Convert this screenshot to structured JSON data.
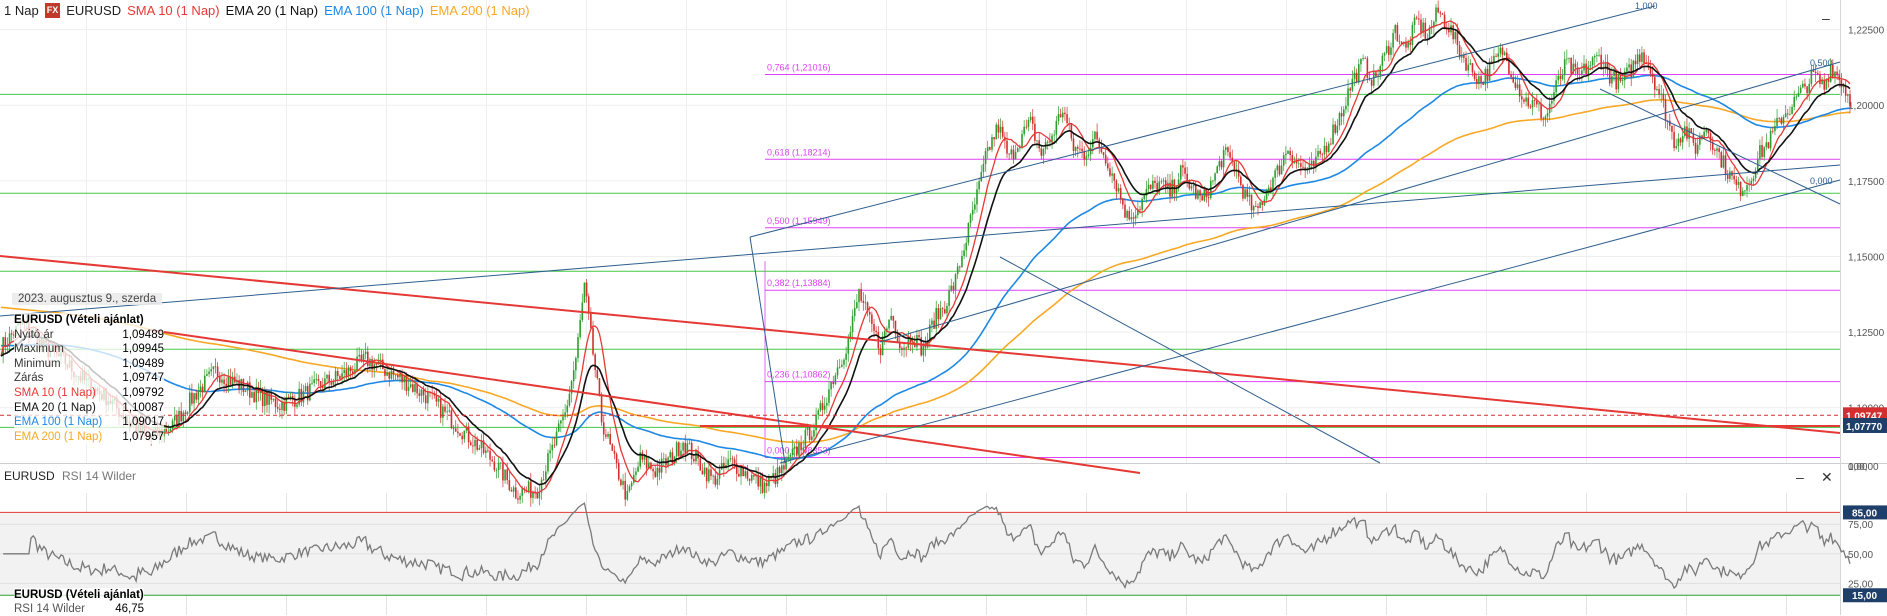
{
  "legend": {
    "timeframe": "1 Nap",
    "badge": "FX",
    "symbol": "EURUSD",
    "sma10": "SMA 10 (1 Nap)",
    "ema20": "EMA 20 (1 Nap)",
    "ema100": "EMA 100 (1 Nap)",
    "ema200": "EMA 200 (1 Nap)"
  },
  "colors": {
    "sma10": "#e53935",
    "ema20": "#111111",
    "ema100": "#1e88e5",
    "ema200": "#f9a825",
    "fib": "#e040fb",
    "hline": "#43c943",
    "trend_red": "#e53935",
    "trend_blue": "#2f5f8f",
    "candle_up": "#2e9d2e",
    "candle_down": "#d32f2f",
    "rsi": "#7a7a7a"
  },
  "info_panel": {
    "date": "2023. augusztus 9., szerda",
    "title": "EURUSD (Vételi ajánlat)",
    "rows": [
      {
        "label": "Nyitó ár",
        "value": "1,09489"
      },
      {
        "label": "Maximum",
        "value": "1,09945"
      },
      {
        "label": "Minimum",
        "value": "1,09489"
      },
      {
        "label": "Zárás",
        "value": "1,09747"
      },
      {
        "label": "SMA 10 (1 Nap)",
        "value": "1,09792"
      },
      {
        "label": "EMA 20 (1 Nap)",
        "value": "1,10087"
      },
      {
        "label": "EMA 100 (1 Nap)",
        "value": "1,09017"
      },
      {
        "label": "EMA 200 (1 Nap)",
        "value": "1,07957"
      }
    ]
  },
  "rsi_panel": {
    "symbol": "EURUSD",
    "indicator": "RSI 14 Wilder",
    "info_title": "EURUSD (Vételi ajánlat)",
    "info_label": "RSI 14 Wilder",
    "info_value": "46,75",
    "upper_level": "85,00",
    "lower_level": "15,00",
    "minimize": "–",
    "close": "✕"
  },
  "price_labels": {
    "current": "1,09747",
    "support": "1,07770"
  },
  "main_minimize": "–",
  "chart_data": {
    "type": "candlestick",
    "symbol": "EURUSD",
    "timeframe": "1 Nap",
    "y_ticks": [
      "1,22500",
      "1,20000",
      "1,17500",
      "1,15000",
      "1,12500",
      "1,10000"
    ],
    "ylim": [
      1.0817,
      1.2348
    ],
    "fibonacci": {
      "levels": [
        {
          "label": "0,000 (1,08353)",
          "value": 1.08353
        },
        {
          "label": "0,382 (1,13884)",
          "value": 1.13884
        },
        {
          "label": "0,500 (1,15949)",
          "value": 1.15949
        },
        {
          "label": "0,618 (1,18214)",
          "value": 1.18214
        },
        {
          "label": "0,764 (1,21016)",
          "value": 1.21016
        }
      ],
      "hidden_label": "0,236 (1,10862)",
      "hidden_value": 1.10862
    },
    "channel_labels": [
      "1,000",
      "0,500",
      "0,000"
    ],
    "horizontal_lines": [
      1.2036,
      1.1709,
      1.1451,
      1.1193,
      1.0935
    ],
    "close_keypoints": [
      [
        0,
        1.12
      ],
      [
        10,
        1.128
      ],
      [
        20,
        1.12
      ],
      [
        30,
        1.115
      ],
      [
        40,
        1.108
      ],
      [
        50,
        1.103
      ],
      [
        60,
        1.095
      ],
      [
        70,
        1.09
      ],
      [
        80,
        1.094
      ],
      [
        90,
        1.104
      ],
      [
        100,
        1.112
      ],
      [
        110,
        1.108
      ],
      [
        120,
        1.104
      ],
      [
        130,
        1.101
      ],
      [
        140,
        1.104
      ],
      [
        150,
        1.108
      ],
      [
        160,
        1.111
      ],
      [
        170,
        1.116
      ],
      [
        180,
        1.112
      ],
      [
        190,
        1.108
      ],
      [
        200,
        1.103
      ],
      [
        210,
        1.096
      ],
      [
        220,
        1.089
      ],
      [
        230,
        1.082
      ],
      [
        240,
        1.072
      ],
      [
        250,
        1.073
      ],
      [
        258,
        1.088
      ],
      [
        263,
        1.098
      ],
      [
        268,
        1.116
      ],
      [
        272,
        1.14
      ],
      [
        276,
        1.118
      ],
      [
        280,
        1.096
      ],
      [
        286,
        1.082
      ],
      [
        292,
        1.07
      ],
      [
        298,
        1.083
      ],
      [
        305,
        1.079
      ],
      [
        312,
        1.083
      ],
      [
        318,
        1.089
      ],
      [
        325,
        1.082
      ],
      [
        332,
        1.076
      ],
      [
        340,
        1.082
      ],
      [
        348,
        1.078
      ],
      [
        356,
        1.074
      ],
      [
        364,
        1.079
      ],
      [
        372,
        1.087
      ],
      [
        380,
        1.095
      ],
      [
        388,
        1.11
      ],
      [
        395,
        1.122
      ],
      [
        400,
        1.138
      ],
      [
        405,
        1.128
      ],
      [
        410,
        1.12
      ],
      [
        415,
        1.131
      ],
      [
        420,
        1.12
      ],
      [
        425,
        1.124
      ],
      [
        430,
        1.119
      ],
      [
        435,
        1.129
      ],
      [
        440,
        1.134
      ],
      [
        445,
        1.142
      ],
      [
        450,
        1.156
      ],
      [
        455,
        1.17
      ],
      [
        460,
        1.185
      ],
      [
        465,
        1.193
      ],
      [
        470,
        1.182
      ],
      [
        475,
        1.189
      ],
      [
        480,
        1.194
      ],
      [
        485,
        1.184
      ],
      [
        490,
        1.19
      ],
      [
        495,
        1.199
      ],
      [
        500,
        1.186
      ],
      [
        505,
        1.184
      ],
      [
        510,
        1.189
      ],
      [
        515,
        1.183
      ],
      [
        520,
        1.174
      ],
      [
        525,
        1.163
      ],
      [
        530,
        1.166
      ],
      [
        535,
        1.172
      ],
      [
        540,
        1.174
      ],
      [
        545,
        1.171
      ],
      [
        550,
        1.178
      ],
      [
        555,
        1.173
      ],
      [
        560,
        1.168
      ],
      [
        565,
        1.175
      ],
      [
        570,
        1.184
      ],
      [
        575,
        1.18
      ],
      [
        580,
        1.17
      ],
      [
        585,
        1.164
      ],
      [
        590,
        1.172
      ],
      [
        595,
        1.178
      ],
      [
        600,
        1.186
      ],
      [
        605,
        1.18
      ],
      [
        610,
        1.178
      ],
      [
        615,
        1.183
      ],
      [
        620,
        1.19
      ],
      [
        625,
        1.198
      ],
      [
        630,
        1.208
      ],
      [
        635,
        1.214
      ],
      [
        640,
        1.208
      ],
      [
        645,
        1.216
      ],
      [
        650,
        1.225
      ],
      [
        655,
        1.218
      ],
      [
        660,
        1.228
      ],
      [
        665,
        1.223
      ],
      [
        670,
        1.231
      ],
      [
        675,
        1.226
      ],
      [
        680,
        1.218
      ],
      [
        685,
        1.212
      ],
      [
        690,
        1.208
      ],
      [
        695,
        1.213
      ],
      [
        700,
        1.218
      ],
      [
        705,
        1.21
      ],
      [
        710,
        1.202
      ],
      [
        715,
        1.2
      ],
      [
        720,
        1.196
      ],
      [
        725,
        1.206
      ],
      [
        730,
        1.214
      ],
      [
        735,
        1.209
      ],
      [
        740,
        1.213
      ],
      [
        745,
        1.216
      ],
      [
        750,
        1.21
      ],
      [
        755,
        1.207
      ],
      [
        760,
        1.212
      ],
      [
        765,
        1.218
      ],
      [
        770,
        1.21
      ],
      [
        775,
        1.2
      ],
      [
        780,
        1.188
      ],
      [
        785,
        1.192
      ],
      [
        790,
        1.186
      ],
      [
        795,
        1.193
      ],
      [
        800,
        1.185
      ],
      [
        805,
        1.178
      ],
      [
        810,
        1.172
      ],
      [
        815,
        1.175
      ],
      [
        820,
        1.184
      ],
      [
        825,
        1.189
      ],
      [
        830,
        1.196
      ],
      [
        835,
        1.2
      ],
      [
        840,
        1.205
      ],
      [
        845,
        1.21
      ],
      [
        850,
        1.206
      ],
      [
        853,
        1.213
      ],
      [
        858,
        1.208
      ],
      [
        862,
        1.202
      ]
    ],
    "rsi": {
      "levels": [
        85,
        75,
        50,
        25,
        15
      ],
      "ylim": [
        0,
        100
      ],
      "last_value": 46.75
    },
    "rsi_ticks": [
      "100,00",
      "75,00",
      "50,00",
      "25,00",
      "0,00"
    ],
    "rsi_level_labels": [
      "85,00",
      "15,00"
    ]
  }
}
